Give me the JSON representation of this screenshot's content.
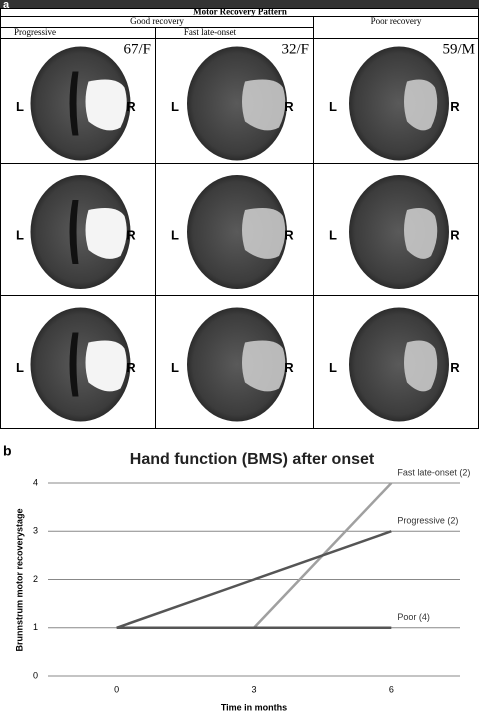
{
  "panel_a": {
    "label": "a",
    "title": "Motor Recovery Pattern",
    "groups": [
      "Good recovery",
      "Poor recovery"
    ],
    "columns": [
      "Progressive",
      "Fast late-onset"
    ],
    "patients": [
      "67/F",
      "32/F",
      "59/M"
    ],
    "side_labels": {
      "left": "L",
      "right": "R"
    }
  },
  "chart_data": {
    "panel_label": "b",
    "type": "line",
    "title": "Hand function (BMS) after onset",
    "y_label": "Brunnstrum motor recoverystage",
    "x_label": "Time in months",
    "categories": [
      "0",
      "3",
      "6"
    ],
    "series": [
      {
        "name": "Fast late-onset (2)",
        "color": "#a0a0a0",
        "values": [
          null,
          1,
          4
        ]
      },
      {
        "name": "Progressive (2)",
        "color": "#555555",
        "values": [
          1,
          2,
          3
        ]
      },
      {
        "name": "Poor (4)",
        "color": "#555555",
        "values": [
          1,
          1,
          1
        ]
      }
    ],
    "ylim": [
      0,
      4
    ],
    "yticks": [
      0,
      1,
      2,
      3,
      4
    ],
    "grid": true
  }
}
